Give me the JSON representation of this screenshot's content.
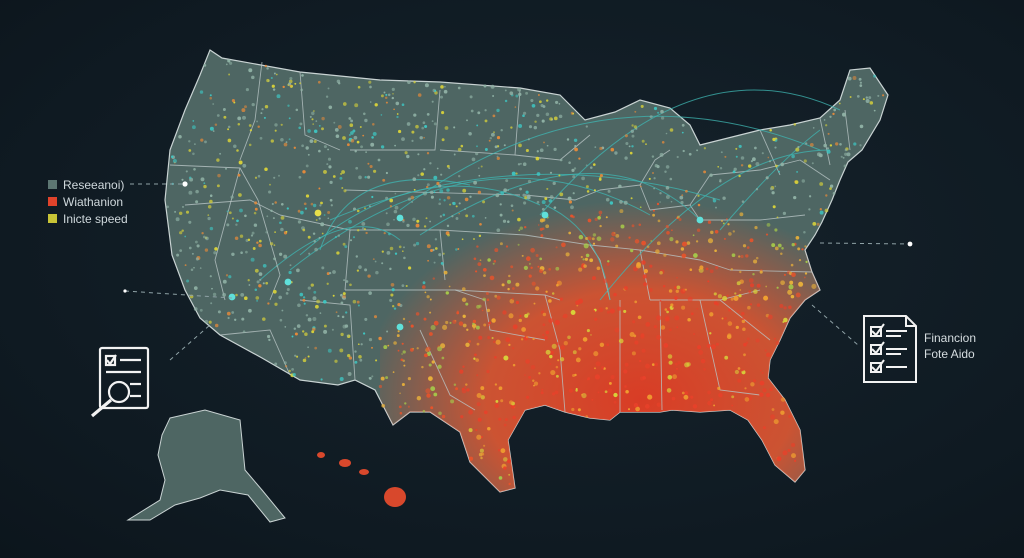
{
  "legend": {
    "items": [
      {
        "label": "Reseeanoi)",
        "color": "#5c7672"
      },
      {
        "label": "Wiathanion",
        "color": "#e0432b"
      },
      {
        "label": "Inicte speed",
        "color": "#c8c436"
      }
    ]
  },
  "note": {
    "line1": "Financion",
    "line2": "Fote Aido"
  },
  "icons": {
    "report_left": "document-magnifier-icon",
    "checklist_right": "checklist-icon"
  },
  "colors": {
    "background": "#0f1a22",
    "land": "#4e6663",
    "border": "#c9d3d3",
    "hot": "#e0432b",
    "warm": "#f0a030",
    "yellow": "#d8d23a",
    "teal": "#3ec8c4"
  }
}
